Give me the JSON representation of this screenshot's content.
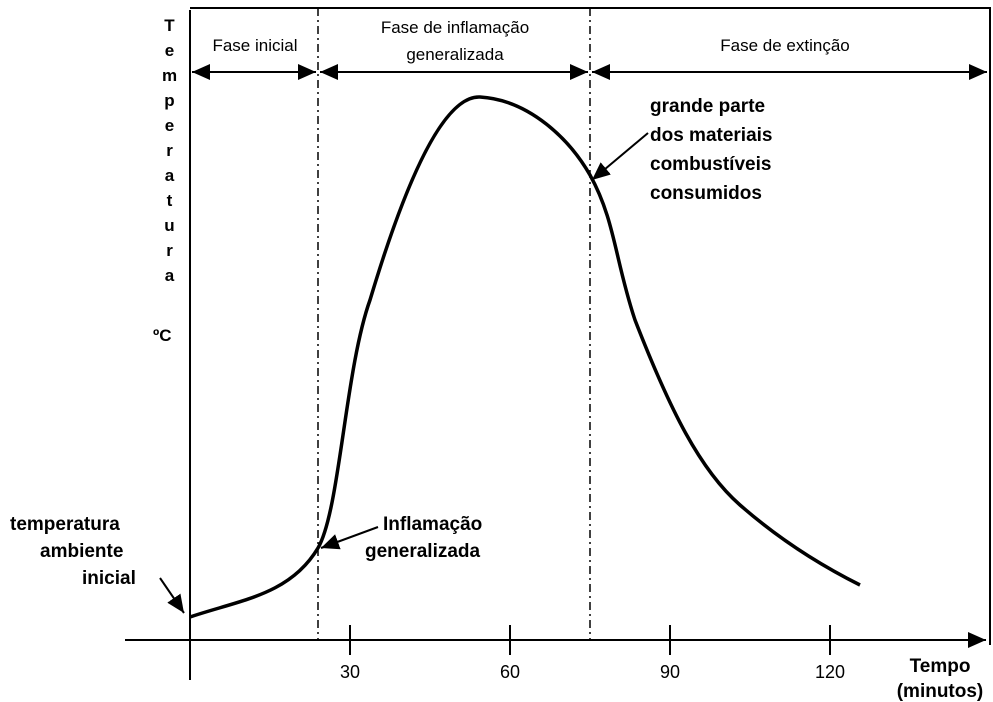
{
  "axes": {
    "y_label": "Temperatura",
    "y_unit": "ºC",
    "x_label": [
      "Tempo",
      "(minutos)"
    ],
    "x_ticks": [
      "30",
      "60",
      "90",
      "120"
    ]
  },
  "phases": [
    {
      "label": [
        "Fase inicial"
      ]
    },
    {
      "label": [
        "Fase de inflamação",
        "generalizada"
      ]
    },
    {
      "label": [
        "Fase de extinção"
      ]
    }
  ],
  "annotations": [
    {
      "lines": [
        "temperatura",
        "ambiente",
        "inicial"
      ]
    },
    {
      "lines": [
        "Inflamação",
        "generalizada"
      ]
    },
    {
      "lines": [
        "grande parte",
        "dos materiais",
        "combustíveis",
        "consumidos"
      ]
    }
  ]
}
